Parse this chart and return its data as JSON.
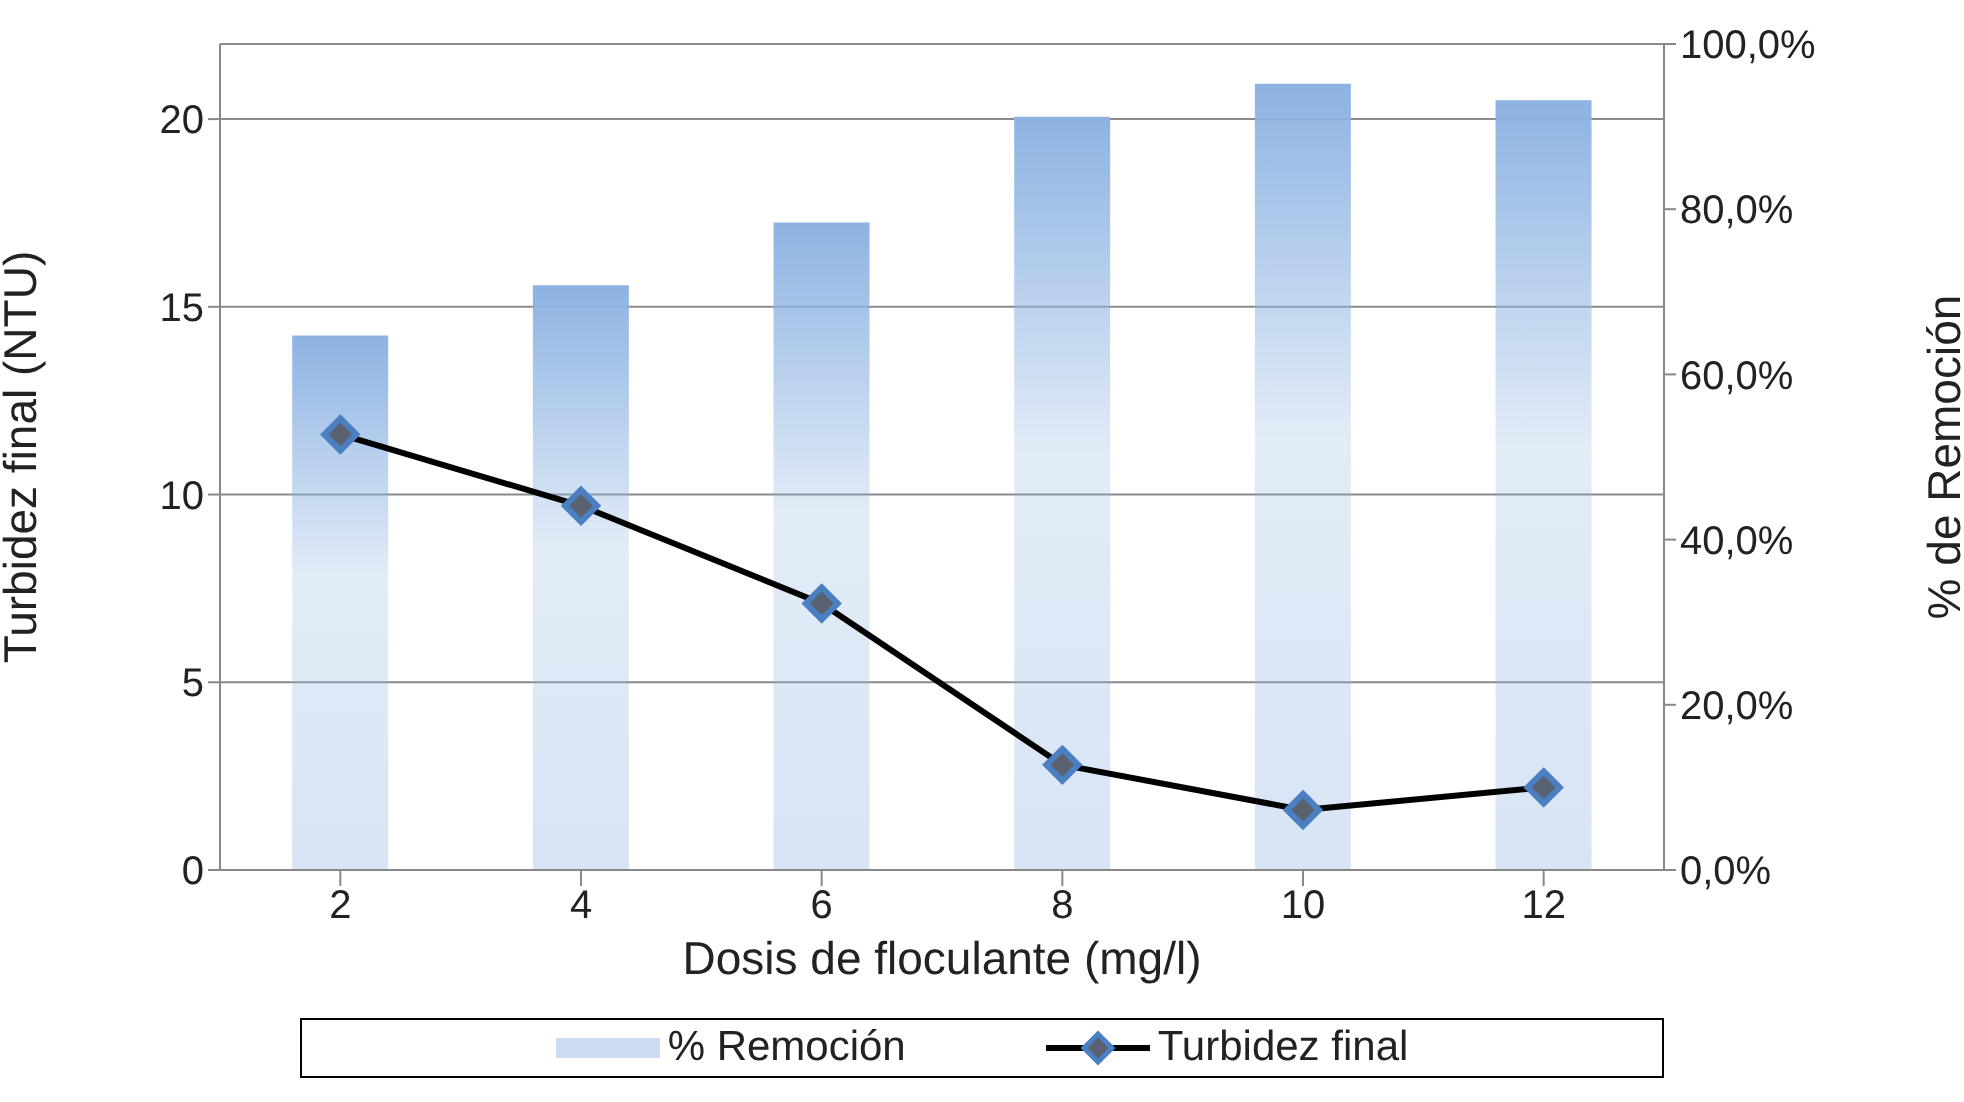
{
  "chart_data": {
    "type": "bar",
    "xlabel": "Dosis de floculante (mg/l)",
    "ylabel": "Turbidez final (NTU)",
    "y2label": "% de Remoción",
    "categories": [
      "2",
      "4",
      "6",
      "8",
      "10",
      "12"
    ],
    "series": [
      {
        "name": "% Remoción",
        "axis": "y2",
        "color": "#8db3e2",
        "values": [
          64.7,
          70.8,
          78.4,
          91.2,
          95.2,
          93.2
        ]
      },
      {
        "name": "Turbidez final",
        "type": "line",
        "color": "#000000",
        "values": [
          11.6,
          9.7,
          7.1,
          2.8,
          1.6,
          2.2
        ],
        "marker": "diamond",
        "line_style": "solid"
      }
    ],
    "ylim": [
      0,
      22
    ],
    "yticks": [
      0,
      5,
      10,
      15,
      20
    ],
    "y2lim": [
      0,
      100
    ],
    "y2ticks": [
      {
        "value": 0,
        "label": "0,0%"
      },
      {
        "value": 20,
        "label": "20,0%"
      },
      {
        "value": 40,
        "label": "40,0%"
      },
      {
        "value": 60,
        "label": "60,0%"
      },
      {
        "value": 80,
        "label": "80,0%"
      },
      {
        "value": 100,
        "label": "100,0%"
      }
    ],
    "grid": "y",
    "legend": "bottom"
  }
}
